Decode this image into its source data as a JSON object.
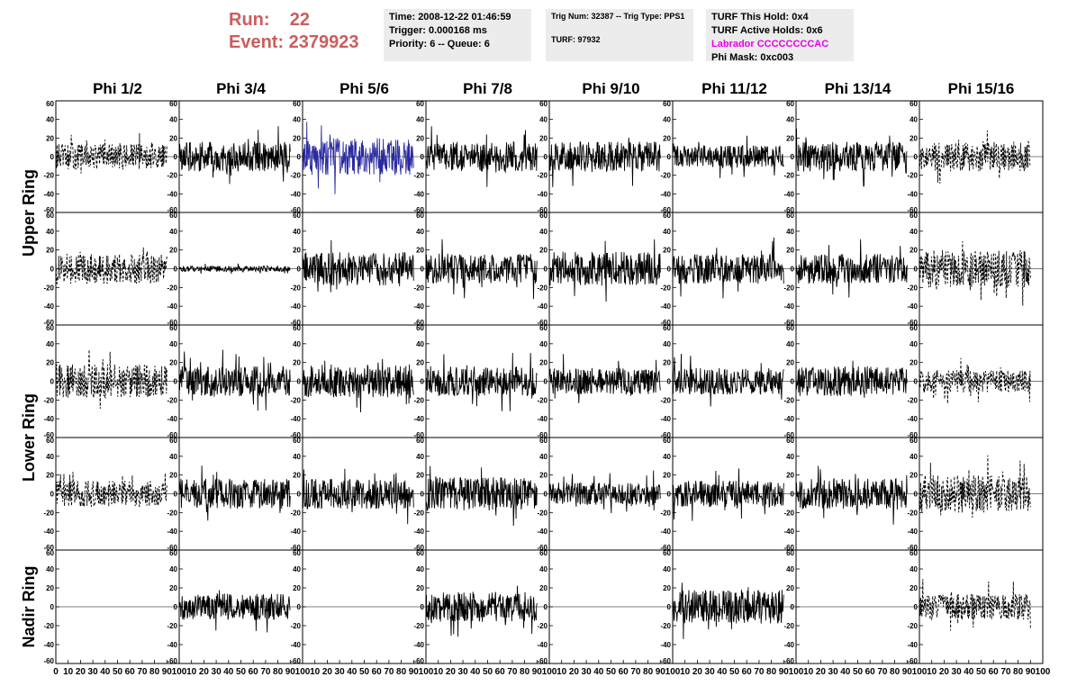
{
  "header": {
    "run_label": "Run:    22",
    "event_label": "Event: 2379923"
  },
  "info_time": {
    "time": "Time: 2008-12-22 01:46:59",
    "trigger": "Trigger: 0.000168 ms",
    "priority": "Priority: 6 -- Queue: 6"
  },
  "info_trig": {
    "trig": "Trig Num: 32387 -- Trig Type: PPS1",
    "turf": "TURF: 97932"
  },
  "info_turf": {
    "this_hold": "TURF This Hold: 0x4",
    "active_holds": "TURF Active Holds: 0x6",
    "labrador": "Labrador CCCCCCCCAC",
    "phi_mask": "Phi Mask: 0xc003"
  },
  "columns": [
    "Phi 1/2",
    "Phi 3/4",
    "Phi 5/6",
    "Phi 7/8",
    "Phi 9/10",
    "Phi 11/12",
    "Phi 13/14",
    "Phi 15/16"
  ],
  "rows": [
    "Upper Ring",
    "Lower Ring",
    "Nadir Ring"
  ],
  "chart_data": {
    "type": "line",
    "x_range": [
      0,
      100
    ],
    "y_range": [
      -60,
      60
    ],
    "y_ticks": [
      -60,
      -40,
      -20,
      0,
      20,
      40,
      60
    ],
    "y_tick_labels": [
      "-60",
      "-40",
      "-20",
      "0",
      "20",
      "40",
      "60"
    ],
    "x_ticks": [
      0,
      10,
      20,
      30,
      40,
      50,
      60,
      70,
      80,
      90,
      100
    ],
    "x_tick_labels": [
      "0",
      "10",
      "20",
      "30",
      "40",
      "50",
      "60",
      "70",
      "80",
      "90",
      "100"
    ],
    "colors": {
      "normal": "#000000",
      "highlight": "#2a2aa0"
    },
    "grid": false,
    "panels": [
      {
        "row": 0,
        "col": 0,
        "amp": 14,
        "style": "dashed"
      },
      {
        "row": 0,
        "col": 1,
        "amp": 16,
        "style": "solid"
      },
      {
        "row": 0,
        "col": 2,
        "amp": 20,
        "style": "highlight"
      },
      {
        "row": 0,
        "col": 3,
        "amp": 16,
        "style": "solid"
      },
      {
        "row": 0,
        "col": 4,
        "amp": 16,
        "style": "solid"
      },
      {
        "row": 0,
        "col": 5,
        "amp": 12,
        "style": "solid"
      },
      {
        "row": 0,
        "col": 6,
        "amp": 16,
        "style": "solid"
      },
      {
        "row": 0,
        "col": 7,
        "amp": 16,
        "style": "dashed"
      },
      {
        "row": 1,
        "col": 0,
        "amp": 16,
        "style": "dashed"
      },
      {
        "row": 1,
        "col": 1,
        "amp": 3,
        "style": "solid"
      },
      {
        "row": 1,
        "col": 2,
        "amp": 18,
        "style": "solid"
      },
      {
        "row": 1,
        "col": 3,
        "amp": 16,
        "style": "solid"
      },
      {
        "row": 1,
        "col": 4,
        "amp": 18,
        "style": "solid"
      },
      {
        "row": 1,
        "col": 5,
        "amp": 16,
        "style": "solid"
      },
      {
        "row": 1,
        "col": 6,
        "amp": 16,
        "style": "solid"
      },
      {
        "row": 1,
        "col": 7,
        "amp": 20,
        "style": "dashed"
      },
      {
        "row": 2,
        "col": 0,
        "amp": 18,
        "style": "dashed"
      },
      {
        "row": 2,
        "col": 1,
        "amp": 16,
        "style": "solid"
      },
      {
        "row": 2,
        "col": 2,
        "amp": 18,
        "style": "solid"
      },
      {
        "row": 2,
        "col": 3,
        "amp": 16,
        "style": "solid"
      },
      {
        "row": 2,
        "col": 4,
        "amp": 14,
        "style": "solid"
      },
      {
        "row": 2,
        "col": 5,
        "amp": 14,
        "style": "solid"
      },
      {
        "row": 2,
        "col": 6,
        "amp": 16,
        "style": "solid"
      },
      {
        "row": 2,
        "col": 7,
        "amp": 12,
        "style": "dashed"
      },
      {
        "row": 3,
        "col": 0,
        "amp": 14,
        "style": "dashed"
      },
      {
        "row": 3,
        "col": 1,
        "amp": 16,
        "style": "solid"
      },
      {
        "row": 3,
        "col": 2,
        "amp": 16,
        "style": "solid"
      },
      {
        "row": 3,
        "col": 3,
        "amp": 18,
        "style": "solid"
      },
      {
        "row": 3,
        "col": 4,
        "amp": 12,
        "style": "solid"
      },
      {
        "row": 3,
        "col": 5,
        "amp": 14,
        "style": "solid"
      },
      {
        "row": 3,
        "col": 6,
        "amp": 16,
        "style": "solid"
      },
      {
        "row": 3,
        "col": 7,
        "amp": 20,
        "style": "dashed"
      },
      {
        "row": 4,
        "col": 0,
        "amp": 0,
        "style": "flat"
      },
      {
        "row": 4,
        "col": 1,
        "amp": 14,
        "style": "solid"
      },
      {
        "row": 4,
        "col": 2,
        "amp": 0,
        "style": "flat"
      },
      {
        "row": 4,
        "col": 3,
        "amp": 16,
        "style": "solid"
      },
      {
        "row": 4,
        "col": 4,
        "amp": 0,
        "style": "flat"
      },
      {
        "row": 4,
        "col": 5,
        "amp": 18,
        "style": "solid"
      },
      {
        "row": 4,
        "col": 6,
        "amp": 0,
        "style": "flat"
      },
      {
        "row": 4,
        "col": 7,
        "amp": 14,
        "style": "dashed"
      }
    ]
  }
}
